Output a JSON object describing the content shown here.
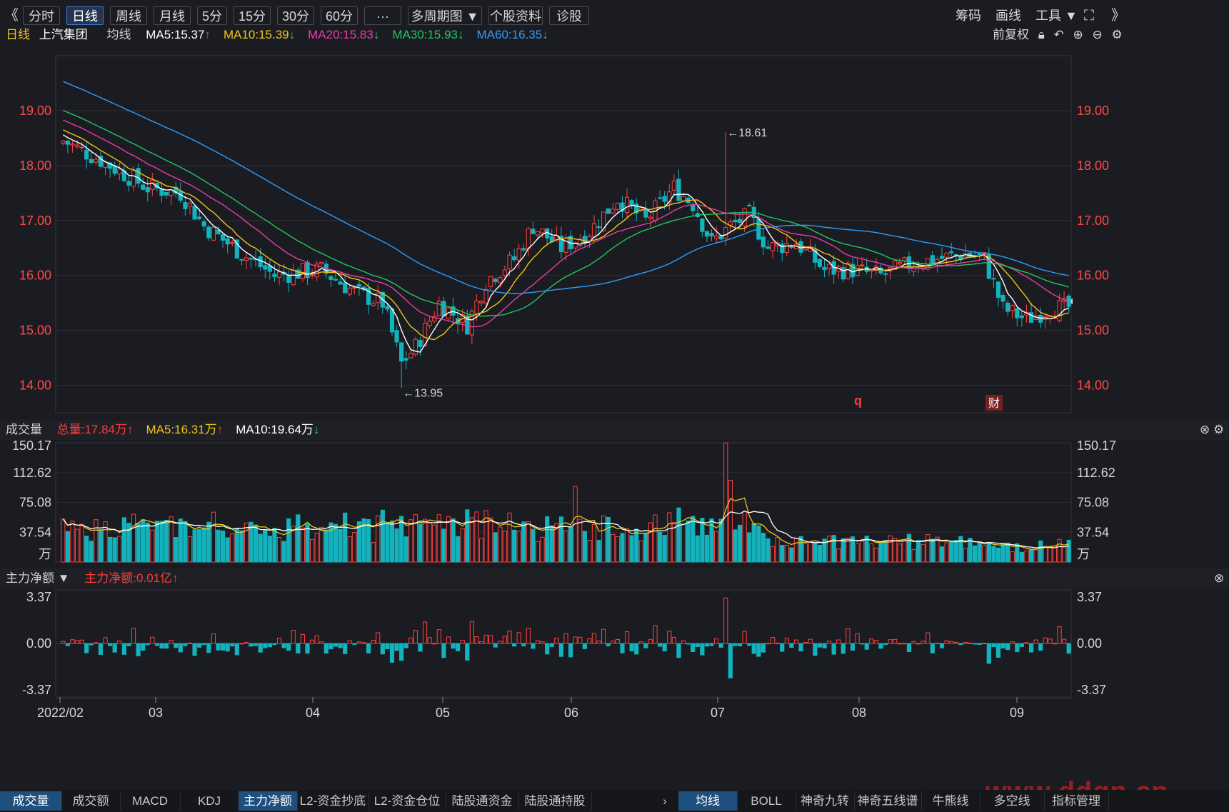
{
  "toolbar": {
    "back": "《",
    "periods": [
      "分时",
      "日线",
      "周线",
      "月线",
      "5分",
      "15分",
      "30分",
      "60分",
      "···",
      "多周期图 ▼",
      "个股资料",
      "诊股"
    ],
    "active_period": "日线",
    "right": [
      "筹码",
      "画线",
      "工具 ▼"
    ],
    "expand_icon": "expand-icon",
    "collapse": "》"
  },
  "main_legend": {
    "period": "日线",
    "stock": "上汽集团",
    "ma_label": "均线",
    "items": [
      {
        "text": "MA5:15.37",
        "arrow": "↑",
        "color": "#ffffff",
        "arrow_color": "#ff3b3b"
      },
      {
        "text": "MA10:15.39",
        "arrow": "↓",
        "color": "#f0c419",
        "arrow_color": "#22c55e"
      },
      {
        "text": "MA20:15.83",
        "arrow": "↓",
        "color": "#e73ca8",
        "arrow_color": "#22c55e"
      },
      {
        "text": "MA30:15.93",
        "arrow": "↓",
        "color": "#22c55e",
        "arrow_color": "#22c55e"
      },
      {
        "text": "MA60:16.35",
        "arrow": "↓",
        "color": "#2d9cff",
        "arrow_color": "#22c55e"
      }
    ],
    "adjust": "前复权"
  },
  "price_axis_labels": [
    "19.00",
    "18.00",
    "17.00",
    "16.00",
    "15.00",
    "14.00"
  ],
  "annotations": {
    "high": "←18.61",
    "low": "←13.95",
    "event_q": "q",
    "event_cai": "财"
  },
  "volume_legend": {
    "title": "成交量",
    "items": [
      {
        "text": "总量:17.84万",
        "arrow": "↑",
        "color": "#ff3b3b",
        "arrow_color": "#ff3b3b"
      },
      {
        "text": "MA5:16.31万",
        "arrow": "↑",
        "color": "#f0c419",
        "arrow_color": "#ff3b3b"
      },
      {
        "text": "MA10:19.64万",
        "arrow": "↓",
        "color": "#ffffff",
        "arrow_color": "#22c55e"
      }
    ]
  },
  "volume_axis_labels": [
    "150.17",
    "112.62",
    "75.08",
    "37.54",
    "万"
  ],
  "flow_legend": {
    "title": "主力净额 ▼",
    "value": "主力净额:0.01亿",
    "arrow": "↑"
  },
  "flow_axis_labels": [
    "3.37",
    "0.00",
    "-3.37"
  ],
  "x_axis_labels": [
    "2022/02",
    "03",
    "04",
    "05",
    "06",
    "07",
    "08",
    "09"
  ],
  "bottom_tabs_left": [
    "成交量",
    "成交额",
    "MACD",
    "KDJ",
    "主力净额",
    "L2-资金抄底",
    "L2-资金仓位",
    "陆股通资金",
    "陆股通持股"
  ],
  "bottom_tabs_right": [
    "均线",
    "BOLL",
    "神奇九转",
    "神奇五线谱",
    "牛熊线",
    "多空线",
    "指标管理"
  ],
  "watermark": "www.ddgp.cn",
  "colors": {
    "up": "#ff4040",
    "down": "#12b3bd",
    "bg": "#1b1c21",
    "grid": "#2e2f36"
  },
  "chart_data": [
    {
      "type": "candlestick",
      "title": "上汽集团 日线",
      "x_range": [
        "2022-02",
        "2022-09"
      ],
      "ylim": [
        13.5,
        20.0
      ],
      "key_points": {
        "high": 18.61,
        "low": 13.95,
        "last_close": 15.42
      },
      "series": [
        {
          "name": "MA5",
          "last": 15.37
        },
        {
          "name": "MA10",
          "last": 15.39
        },
        {
          "name": "MA20",
          "last": 15.83
        },
        {
          "name": "MA30",
          "last": 15.93
        },
        {
          "name": "MA60",
          "last": 16.35
        }
      ]
    },
    {
      "type": "bar",
      "title": "成交量",
      "unit": "万",
      "ylim": [
        0,
        150.17
      ],
      "series": [
        {
          "name": "总量",
          "last": 17.84
        },
        {
          "name": "MA5",
          "last": 16.31
        },
        {
          "name": "MA10",
          "last": 19.64
        }
      ]
    },
    {
      "type": "bar",
      "title": "主力净额",
      "unit": "亿",
      "ylim": [
        -3.37,
        3.37
      ],
      "series": [
        {
          "name": "主力净额",
          "last": 0.01
        }
      ]
    }
  ]
}
